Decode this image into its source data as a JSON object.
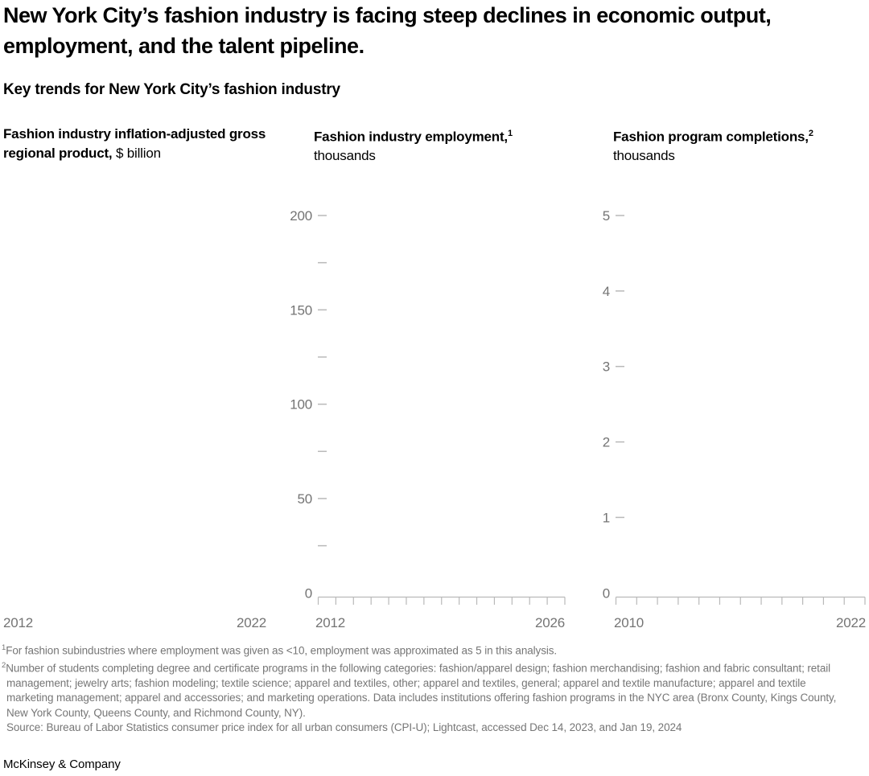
{
  "header": {
    "title": "New York City’s fashion industry is facing steep declines in economic output, employment, and the talent pipeline.",
    "subtitle": "Key trends for New York City’s fashion industry"
  },
  "charts": [
    {
      "title": "Fashion industry inflation-adjusted gross regional product,",
      "footnote_marker": "",
      "unit": "$ billion"
    },
    {
      "title": "Fashion industry employment,",
      "footnote_marker": "1",
      "unit": "thousands"
    },
    {
      "title": "Fashion program completions,",
      "footnote_marker": "2",
      "unit": "thousands"
    }
  ],
  "chart_data": [
    {
      "type": "line",
      "title": "Fashion industry inflation-adjusted gross regional product, $ billion",
      "series": [],
      "xlim": [
        2012,
        2022
      ],
      "x_tick_labels_visible": [
        "2012",
        "2022"
      ],
      "axes_visible": false,
      "note": "empty panel - no axes or data series rendered, only x-axis end-year labels"
    },
    {
      "type": "line",
      "title": "Fashion industry employment, thousands",
      "series": [],
      "xlim": [
        2012,
        2026
      ],
      "ylim": [
        0,
        200
      ],
      "y_major_ticks": [
        0,
        50,
        100,
        150,
        200
      ],
      "y_minor_ticks": [
        25,
        75,
        125,
        175
      ],
      "x_tick_count": 15,
      "x_tick_labels_visible": [
        "2012",
        "2026"
      ],
      "axes_visible": true,
      "note": "empty plot - axes drawn but no data series rendered"
    },
    {
      "type": "line",
      "title": "Fashion program completions, thousands",
      "series": [],
      "xlim": [
        2010,
        2022
      ],
      "ylim": [
        0,
        5
      ],
      "y_major_ticks": [
        0,
        1,
        2,
        3,
        4,
        5
      ],
      "y_minor_ticks": [],
      "x_tick_count": 13,
      "x_tick_labels_visible": [
        "2010",
        "2022"
      ],
      "axes_visible": true,
      "note": "empty plot - axes drawn but no data series rendered"
    }
  ],
  "footnotes": [
    {
      "marker": "1",
      "text": "For fashion subindustries where employment was given as <10, employment was approximated as 5 in this analysis."
    },
    {
      "marker": "2",
      "text": "Number of students completing degree and certificate programs in the following categories: fashion/apparel design; fashion merchandising; fashion and fabric consultant; retail management; jewelry arts; fashion modeling; textile science; apparel and textiles, other; apparel and textiles, general; apparel and textile manufacture; apparel and textile marketing management; apparel and accessories; and marketing operations. Data includes institutions offering fashion programs in the NYC area (Bronx County, Kings County, New York County, Queens County, and Richmond County, NY)."
    }
  ],
  "source": "Source: Bureau of Labor Statistics consumer price index for all urban consumers (CPI-U); Lightcast, accessed Dec 14, 2023, and Jan 19, 2024",
  "logo": "McKinsey & Company",
  "colors": {
    "text": "#000000",
    "axis_label": "#747474",
    "axis_line": "#b9b9b9",
    "footnote": "#767676"
  }
}
